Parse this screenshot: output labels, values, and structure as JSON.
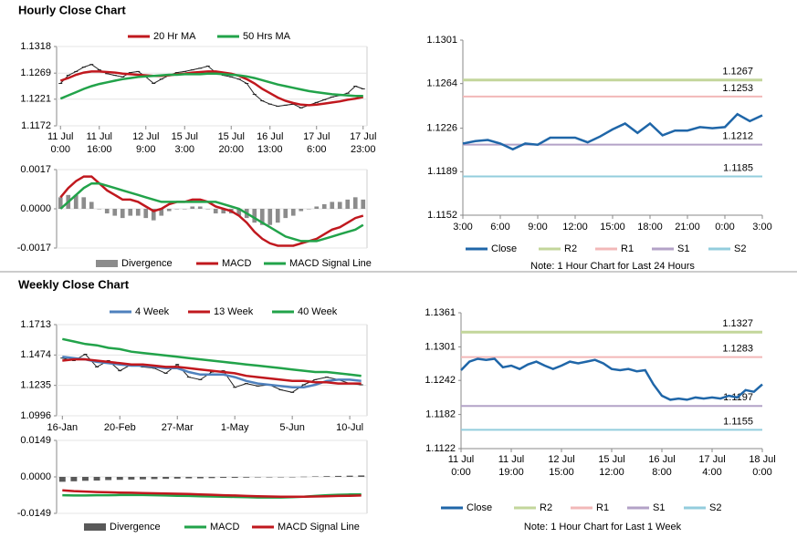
{
  "headings": [
    "Hourly Close Chart",
    "Weekly Close Chart"
  ],
  "chart_data": [
    {
      "type": "line",
      "grid": true,
      "ylim": [
        1.1172,
        1.1318
      ],
      "yticks": [
        1.1172,
        1.1221,
        1.1269,
        1.1318
      ],
      "categories": [
        [
          "11 Jul",
          "0:00"
        ],
        null,
        null,
        null,
        null,
        [
          "11 Jul",
          "16:00"
        ],
        null,
        null,
        null,
        null,
        null,
        [
          "12 Jul",
          "9:00"
        ],
        null,
        null,
        null,
        null,
        [
          "15 Jul",
          "3:00"
        ],
        null,
        null,
        null,
        null,
        null,
        [
          "15 Jul",
          "20:00"
        ],
        null,
        null,
        null,
        null,
        [
          "16 Jul",
          "13:00"
        ],
        null,
        null,
        null,
        null,
        null,
        [
          "17 Jul",
          "6:00"
        ],
        null,
        null,
        null,
        null,
        null,
        [
          "17 Jul",
          "23:00"
        ]
      ],
      "prices": [
        1.125,
        1.1265,
        1.1272,
        1.128,
        1.1285,
        1.1275,
        1.1268,
        1.1265,
        1.1262,
        1.127,
        1.1272,
        1.1262,
        1.125,
        1.1258,
        1.1265,
        1.127,
        1.1272,
        1.1275,
        1.1278,
        1.1282,
        1.127,
        1.1265,
        1.1262,
        1.1258,
        1.125,
        1.123,
        1.1218,
        1.1212,
        1.1208,
        1.121,
        1.1212,
        1.1205,
        1.121,
        1.1215,
        1.122,
        1.1225,
        1.1228,
        1.1232,
        1.1245,
        1.124
      ],
      "series": [
        {
          "name": "20 Hr MA",
          "color": "#c0181e",
          "values": [
            1.1255,
            1.126,
            1.1266,
            1.127,
            1.1272,
            1.1272,
            1.1271,
            1.127,
            1.1268,
            1.1267,
            1.1266,
            1.1265,
            1.1264,
            1.1264,
            1.1265,
            1.1267,
            1.1268,
            1.127,
            1.1271,
            1.1272,
            1.1272,
            1.127,
            1.1268,
            1.1264,
            1.1258,
            1.125,
            1.124,
            1.1232,
            1.1224,
            1.1218,
            1.1214,
            1.1211,
            1.121,
            1.1211,
            1.1213,
            1.1215,
            1.1217,
            1.122,
            1.1222,
            1.1225
          ]
        },
        {
          "name": "50 Hrs MA",
          "color": "#22a34a",
          "values": [
            1.1222,
            1.1228,
            1.1234,
            1.124,
            1.1245,
            1.1249,
            1.1252,
            1.1255,
            1.1258,
            1.126,
            1.1262,
            1.1263,
            1.1264,
            1.1265,
            1.1266,
            1.1266,
            1.1267,
            1.1267,
            1.1267,
            1.1268,
            1.1268,
            1.1267,
            1.1266,
            1.1265,
            1.1263,
            1.126,
            1.1256,
            1.1252,
            1.1248,
            1.1245,
            1.1242,
            1.1239,
            1.1236,
            1.1234,
            1.1232,
            1.123,
            1.1229,
            1.1228,
            1.1227,
            1.1227
          ]
        }
      ]
    },
    {
      "type": "macd",
      "grid": true,
      "ylim": [
        -0.0017,
        0.0017
      ],
      "yticks": [
        -0.0017,
        {
          "value": 0,
          "label": "0.0000"
        },
        0.0017
      ],
      "series": [
        {
          "name": "Divergence",
          "color": "#8c8c8c",
          "bar": true,
          "values": [
            0.0005,
            0.0006,
            0.0006,
            0.0005,
            0.0003,
            0.0,
            -0.0002,
            -0.0003,
            -0.0004,
            -0.0003,
            -0.0003,
            -0.0004,
            -0.0005,
            -0.0003,
            -0.0001,
            0.0,
            0.0,
            0.0001,
            0.0001,
            0.0,
            -0.0002,
            -0.0002,
            -0.0002,
            -0.0003,
            -0.0004,
            -0.0006,
            -0.0007,
            -0.0007,
            -0.0006,
            -0.0004,
            -0.0003,
            -0.0001,
            0.0,
            0.0001,
            0.0002,
            0.0003,
            0.0003,
            0.0004,
            0.0005,
            0.0004
          ]
        },
        {
          "name": "MACD",
          "color": "#c0181e",
          "values": [
            0.0005,
            0.0009,
            0.0012,
            0.0014,
            0.0014,
            0.0011,
            0.0008,
            0.0006,
            0.0004,
            0.0004,
            0.0003,
            0.0001,
            -0.0001,
            0.0,
            0.0002,
            0.0003,
            0.0003,
            0.0004,
            0.0004,
            0.0003,
            0.0001,
            0.0,
            -0.0001,
            -0.0003,
            -0.0006,
            -0.001,
            -0.0013,
            -0.0015,
            -0.0016,
            -0.0016,
            -0.0016,
            -0.0015,
            -0.0014,
            -0.0013,
            -0.0011,
            -0.0009,
            -0.0008,
            -0.0006,
            -0.0004,
            -0.0003
          ]
        },
        {
          "name": "MACD Signal Line",
          "color": "#22a34a",
          "values": [
            0.0,
            0.0003,
            0.0006,
            0.0009,
            0.0011,
            0.0011,
            0.001,
            0.0009,
            0.0008,
            0.0007,
            0.0006,
            0.0005,
            0.0004,
            0.0003,
            0.0003,
            0.0003,
            0.0003,
            0.0003,
            0.0003,
            0.0003,
            0.0003,
            0.0002,
            0.0001,
            0.0,
            -0.0002,
            -0.0004,
            -0.0006,
            -0.0008,
            -0.001,
            -0.0012,
            -0.0013,
            -0.0014,
            -0.0014,
            -0.0014,
            -0.0013,
            -0.0012,
            -0.0011,
            -0.001,
            -0.0009,
            -0.0007
          ]
        }
      ]
    },
    {
      "type": "line",
      "grid": false,
      "ylim": [
        1.1152,
        1.1301
      ],
      "yticks": [
        1.1152,
        1.1189,
        1.1226,
        1.1264,
        1.1301
      ],
      "categories": [
        "3:00",
        null,
        null,
        "6:00",
        null,
        null,
        "9:00",
        null,
        null,
        "12:00",
        null,
        null,
        "15:00",
        null,
        null,
        "18:00",
        null,
        null,
        "21:00",
        null,
        null,
        "0:00",
        null,
        null,
        "3:00"
      ],
      "series": [
        {
          "name": "Close",
          "color": "#1f66a8",
          "values": [
            1.1213,
            1.1215,
            1.1216,
            1.1213,
            1.1208,
            1.1213,
            1.1212,
            1.1218,
            1.1218,
            1.1218,
            1.1214,
            1.1219,
            1.1225,
            1.123,
            1.1222,
            1.123,
            1.122,
            1.1224,
            1.1224,
            1.1227,
            1.1226,
            1.1227,
            1.1238,
            1.1232,
            1.1237
          ]
        }
      ],
      "levels": [
        {
          "name": "R2",
          "value": 1.1267,
          "color": "#c3d69b"
        },
        {
          "name": "R1",
          "value": 1.1253,
          "color": "#f2b8b8"
        },
        {
          "name": "S1",
          "value": 1.1212,
          "color": "#b3a2c7"
        },
        {
          "name": "S2",
          "value": 1.1185,
          "color": "#93cddd"
        }
      ],
      "note": "Note: 1 Hour Chart for Last 24 Hours"
    },
    {
      "type": "line",
      "grid": true,
      "ylim": [
        1.0996,
        1.1713
      ],
      "yticks": [
        1.0996,
        1.1235,
        1.1474,
        1.1713
      ],
      "categories": [
        "16-Jan",
        null,
        null,
        null,
        null,
        "20-Feb",
        null,
        null,
        null,
        null,
        "27-Mar",
        null,
        null,
        null,
        null,
        "1-May",
        null,
        null,
        null,
        null,
        "5-Jun",
        null,
        null,
        null,
        null,
        "10-Jul",
        null
      ],
      "prices": [
        1.145,
        1.143,
        1.148,
        1.138,
        1.143,
        1.135,
        1.14,
        1.138,
        1.137,
        1.133,
        1.14,
        1.13,
        1.128,
        1.134,
        1.135,
        1.122,
        1.125,
        1.123,
        1.124,
        1.12,
        1.118,
        1.124,
        1.128,
        1.13,
        1.128,
        1.125,
        1.124
      ],
      "series": [
        {
          "name": "4 Week",
          "color": "#4f81bd",
          "values": [
            1.146,
            1.145,
            1.144,
            1.142,
            1.141,
            1.14,
            1.139,
            1.139,
            1.138,
            1.137,
            1.137,
            1.134,
            1.132,
            1.132,
            1.132,
            1.13,
            1.127,
            1.125,
            1.124,
            1.123,
            1.122,
            1.122,
            1.124,
            1.127,
            1.128,
            1.128,
            1.127
          ]
        },
        {
          "name": "13 Week",
          "color": "#c0181e",
          "values": [
            1.143,
            1.144,
            1.144,
            1.143,
            1.142,
            1.141,
            1.14,
            1.14,
            1.139,
            1.138,
            1.138,
            1.137,
            1.136,
            1.135,
            1.134,
            1.133,
            1.131,
            1.13,
            1.129,
            1.128,
            1.127,
            1.127,
            1.126,
            1.126,
            1.125,
            1.125,
            1.125
          ]
        },
        {
          "name": "40 Week",
          "color": "#22a34a",
          "values": [
            1.16,
            1.158,
            1.156,
            1.155,
            1.153,
            1.152,
            1.15,
            1.149,
            1.148,
            1.147,
            1.146,
            1.145,
            1.144,
            1.143,
            1.142,
            1.141,
            1.14,
            1.139,
            1.138,
            1.137,
            1.136,
            1.135,
            1.134,
            1.134,
            1.133,
            1.132,
            1.131
          ]
        }
      ]
    },
    {
      "type": "macd",
      "grid": true,
      "ylim": [
        -0.0149,
        0.0149
      ],
      "yticks": [
        -0.0149,
        {
          "value": 0,
          "label": "0.0000"
        },
        0.0149
      ],
      "series": [
        {
          "name": "Divergence",
          "color": "#595959",
          "bar": true,
          "values": [
            -0.002,
            -0.0018,
            -0.0016,
            -0.0015,
            -0.0013,
            -0.0012,
            -0.0011,
            -0.001,
            -0.0009,
            -0.0008,
            -0.0007,
            -0.0006,
            -0.0006,
            -0.0005,
            -0.0004,
            -0.0004,
            -0.0003,
            -0.0002,
            -0.0002,
            -0.0001,
            0.0,
            0.0001,
            0.0002,
            0.0003,
            0.0004,
            0.0005,
            0.0006
          ]
        },
        {
          "name": "MACD",
          "color": "#22a34a",
          "values": [
            -0.0075,
            -0.0076,
            -0.0076,
            -0.0075,
            -0.0075,
            -0.0074,
            -0.0074,
            -0.0074,
            -0.0075,
            -0.0076,
            -0.0077,
            -0.0078,
            -0.0079,
            -0.008,
            -0.0081,
            -0.0082,
            -0.0083,
            -0.0084,
            -0.0084,
            -0.0084,
            -0.0083,
            -0.0081,
            -0.0078,
            -0.0075,
            -0.0073,
            -0.0072,
            -0.0071
          ]
        },
        {
          "name": "MACD Signal Line",
          "color": "#c0181e",
          "values": [
            -0.0055,
            -0.0058,
            -0.006,
            -0.0062,
            -0.0063,
            -0.0064,
            -0.0065,
            -0.0066,
            -0.0067,
            -0.0068,
            -0.0069,
            -0.007,
            -0.0072,
            -0.0073,
            -0.0075,
            -0.0076,
            -0.0078,
            -0.0079,
            -0.008,
            -0.0081,
            -0.0081,
            -0.0081,
            -0.008,
            -0.0079,
            -0.0078,
            -0.0077,
            -0.0076
          ]
        }
      ]
    },
    {
      "type": "line",
      "grid": false,
      "ylim": [
        1.1122,
        1.1361
      ],
      "yticks": [
        1.1122,
        1.1182,
        1.1242,
        1.1301,
        1.1361
      ],
      "categories": [
        [
          "11 Jul",
          "0:00"
        ],
        null,
        null,
        null,
        null,
        null,
        [
          "11 Jul",
          "19:00"
        ],
        null,
        null,
        null,
        null,
        null,
        [
          "12 Jul",
          "15:00"
        ],
        null,
        null,
        null,
        null,
        null,
        [
          "15 Jul",
          "12:00"
        ],
        null,
        null,
        null,
        null,
        null,
        [
          "16 Jul",
          "8:00"
        ],
        null,
        null,
        null,
        null,
        null,
        [
          "17 Jul",
          "4:00"
        ],
        null,
        null,
        null,
        null,
        null,
        [
          "18 Jul",
          "0:00"
        ]
      ],
      "series": [
        {
          "name": "Close",
          "color": "#1f66a8",
          "values": [
            1.126,
            1.1275,
            1.128,
            1.1278,
            1.128,
            1.1265,
            1.1268,
            1.1262,
            1.127,
            1.1275,
            1.1268,
            1.1262,
            1.1268,
            1.1275,
            1.1272,
            1.1275,
            1.1278,
            1.1272,
            1.1262,
            1.126,
            1.1262,
            1.1258,
            1.126,
            1.1235,
            1.1215,
            1.1208,
            1.121,
            1.1208,
            1.1212,
            1.121,
            1.1212,
            1.121,
            1.1215,
            1.1212,
            1.1225,
            1.1222,
            1.1235
          ]
        }
      ],
      "levels": [
        {
          "name": "R2",
          "value": 1.1327,
          "color": "#c3d69b"
        },
        {
          "name": "R1",
          "value": 1.1283,
          "color": "#f2b8b8"
        },
        {
          "name": "S1",
          "value": 1.1197,
          "color": "#b3a2c7"
        },
        {
          "name": "S2",
          "value": 1.1155,
          "color": "#93cddd"
        }
      ],
      "note": "Note: 1 Hour Chart for Last 1 Week"
    }
  ]
}
